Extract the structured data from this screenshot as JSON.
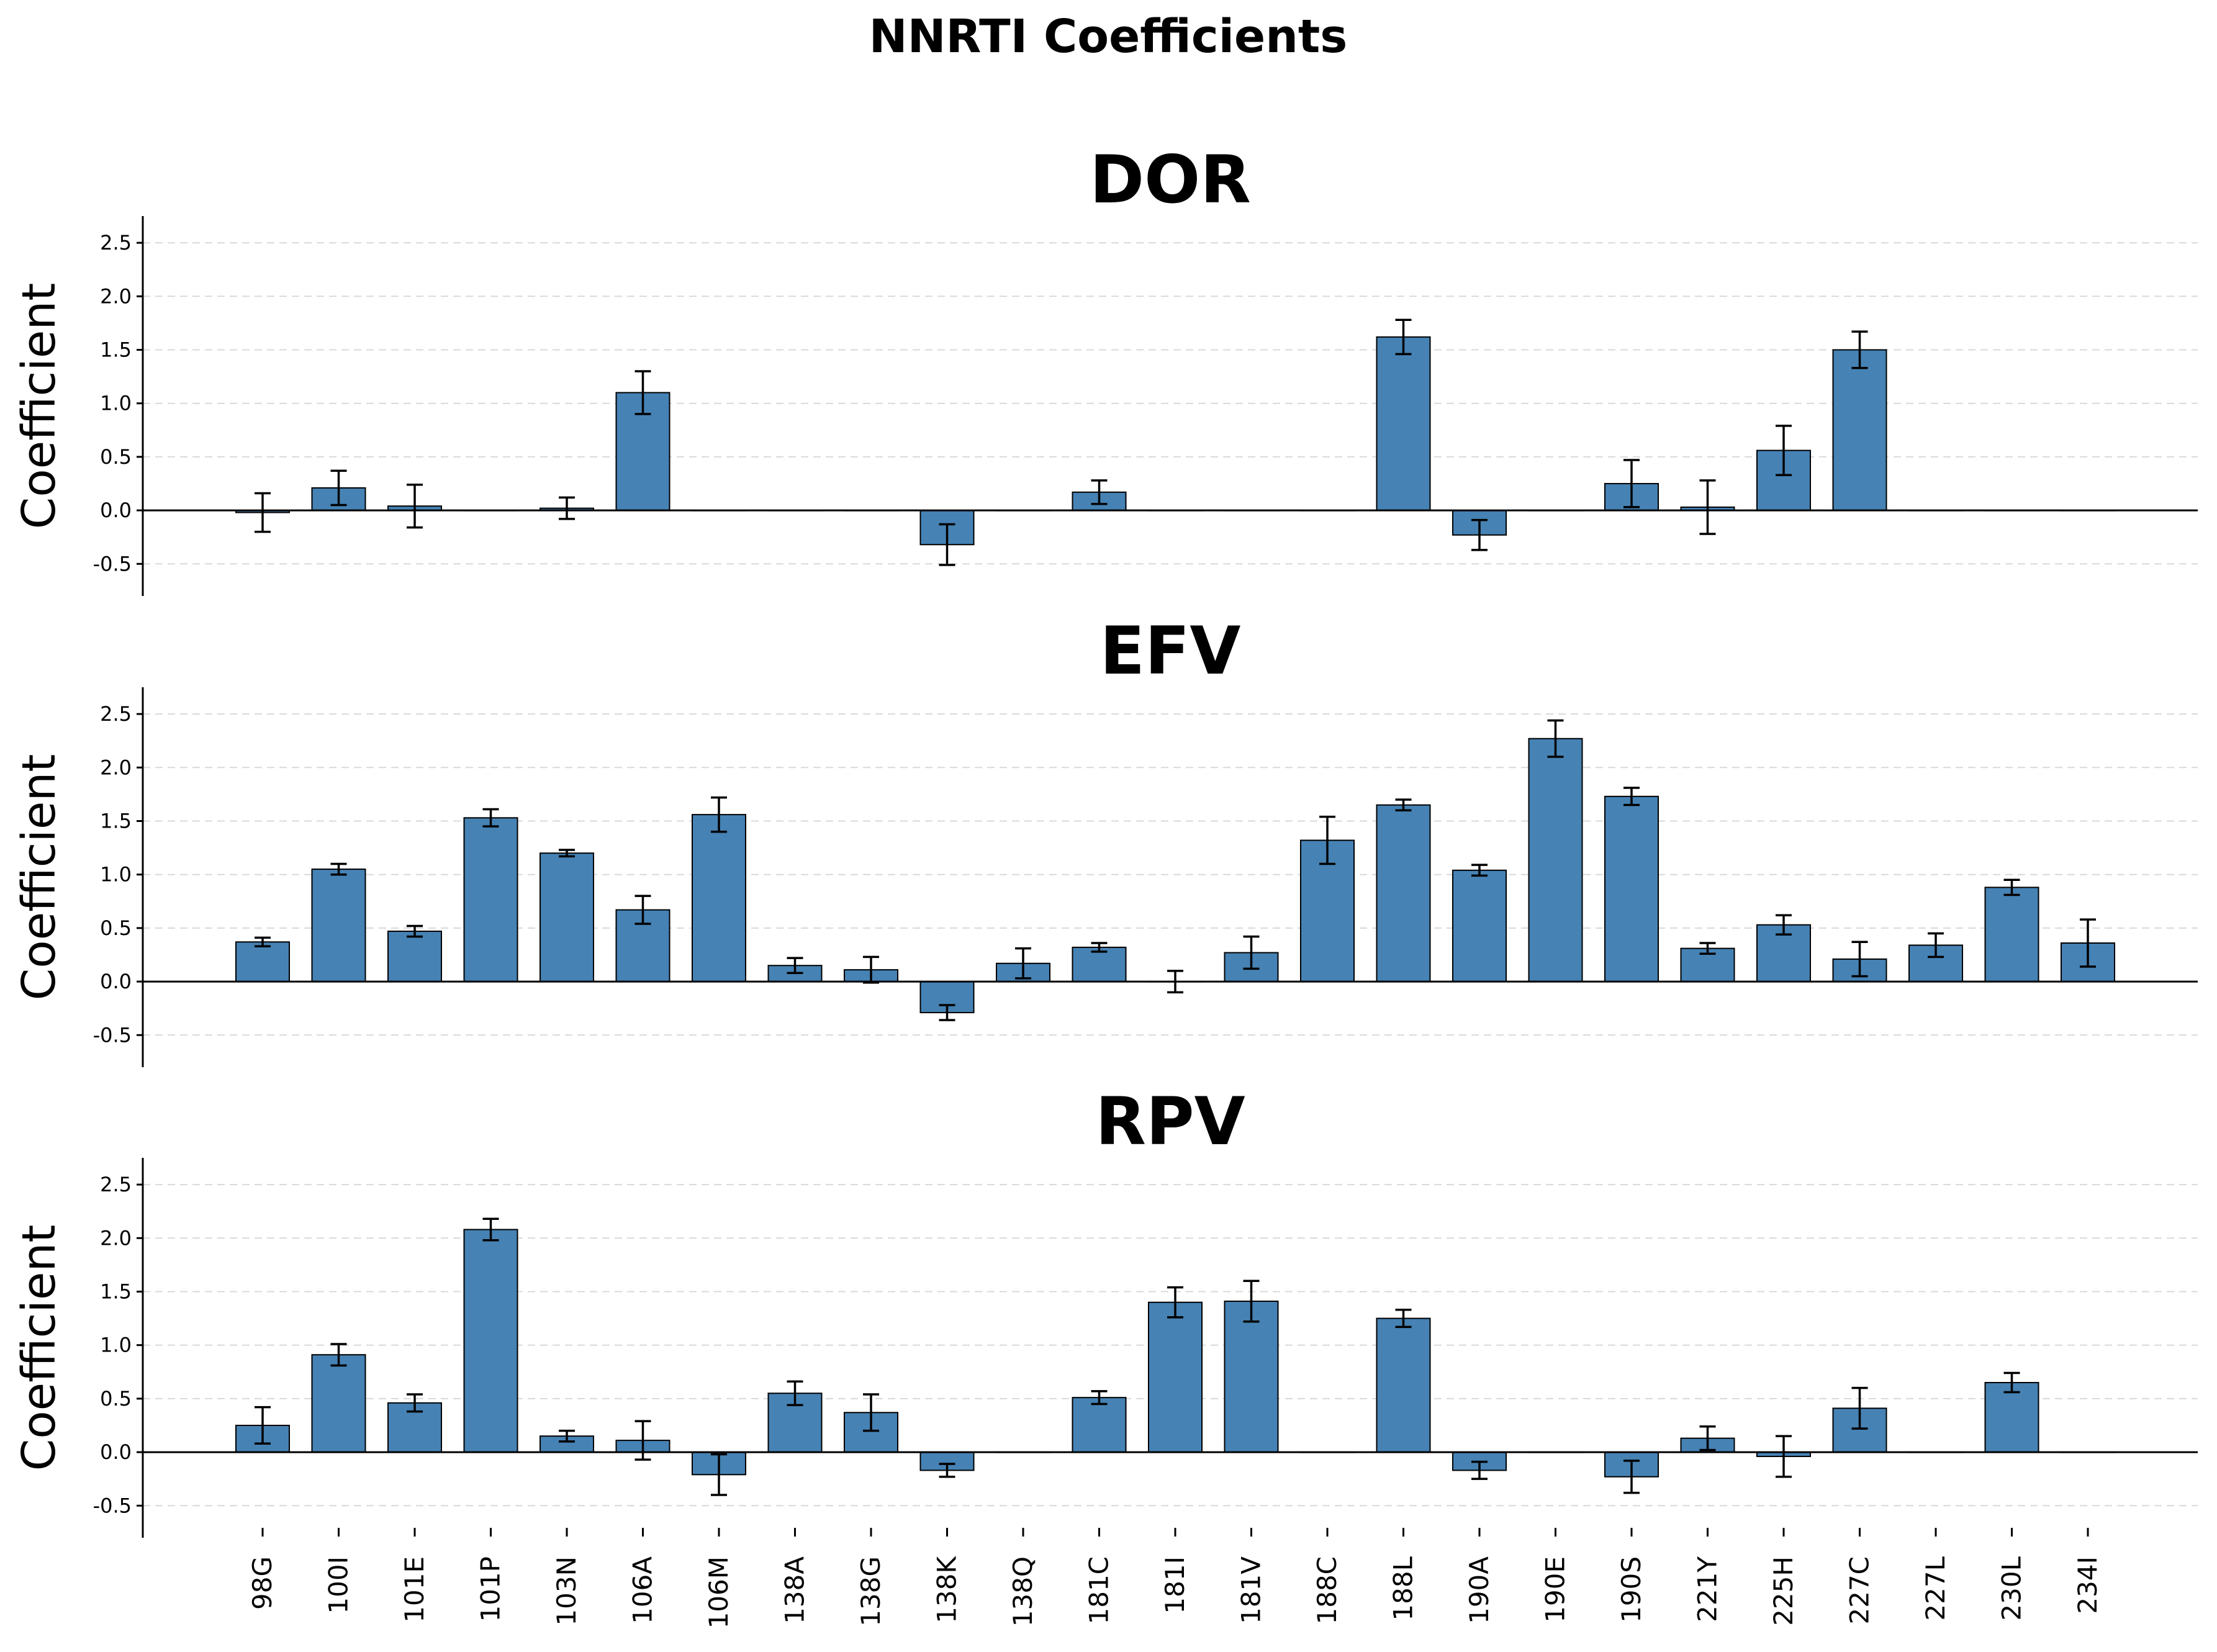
{
  "chart_data": {
    "type": "bar",
    "title": "NNRTI Coefficients",
    "ylabel": "Coefficient",
    "ylim": [
      -0.8,
      2.75
    ],
    "yticks": [
      "-0.5",
      "0.0",
      "0.5",
      "1.0",
      "1.5",
      "2.0",
      "2.5"
    ],
    "grid": "y, dashed",
    "bar_color": "#4682b4",
    "categories": [
      "98G",
      "100I",
      "101E",
      "101P",
      "103N",
      "106A",
      "106M",
      "138A",
      "138G",
      "138K",
      "138Q",
      "181C",
      "181I",
      "181V",
      "188C",
      "188L",
      "190A",
      "190E",
      "190S",
      "221Y",
      "225H",
      "227C",
      "227L",
      "230L",
      "234I"
    ],
    "panels": [
      {
        "title": "DOR",
        "values": [
          -0.02,
          0.21,
          0.04,
          0.0,
          0.02,
          1.1,
          0.0,
          0.0,
          0.0,
          -0.32,
          0.0,
          0.17,
          0.0,
          0.0,
          0.0,
          1.62,
          -0.23,
          0.0,
          0.25,
          0.03,
          0.56,
          1.5,
          0.0,
          0.0,
          0.0
        ],
        "errors": [
          0.18,
          0.16,
          0.2,
          0.0,
          0.1,
          0.2,
          0.0,
          0.0,
          0.0,
          0.19,
          0.0,
          0.11,
          0.0,
          0.0,
          0.0,
          0.16,
          0.14,
          0.0,
          0.22,
          0.25,
          0.23,
          0.17,
          0.0,
          0.0,
          0.0
        ]
      },
      {
        "title": "EFV",
        "values": [
          0.37,
          1.05,
          0.47,
          1.53,
          1.2,
          0.67,
          1.56,
          0.15,
          0.11,
          -0.29,
          0.17,
          0.32,
          0.0,
          0.27,
          1.32,
          1.65,
          1.04,
          2.27,
          1.73,
          0.31,
          0.53,
          0.21,
          0.34,
          0.88,
          0.36
        ],
        "errors": [
          0.04,
          0.05,
          0.05,
          0.08,
          0.03,
          0.13,
          0.16,
          0.07,
          0.12,
          0.07,
          0.14,
          0.04,
          0.1,
          0.15,
          0.22,
          0.05,
          0.05,
          0.17,
          0.08,
          0.05,
          0.09,
          0.16,
          0.11,
          0.07,
          0.22
        ]
      },
      {
        "title": "RPV",
        "values": [
          0.25,
          0.91,
          0.46,
          2.08,
          0.15,
          0.11,
          -0.21,
          0.55,
          0.37,
          -0.17,
          0.0,
          0.51,
          1.4,
          1.41,
          0.0,
          1.25,
          -0.17,
          0.0,
          -0.23,
          0.13,
          -0.04,
          0.41,
          0.0,
          0.65,
          0.0
        ],
        "errors": [
          0.17,
          0.1,
          0.08,
          0.1,
          0.05,
          0.18,
          0.19,
          0.11,
          0.17,
          0.06,
          0.0,
          0.06,
          0.14,
          0.19,
          0.0,
          0.08,
          0.08,
          0.0,
          0.15,
          0.11,
          0.19,
          0.19,
          0.0,
          0.09,
          0.0
        ]
      }
    ]
  }
}
